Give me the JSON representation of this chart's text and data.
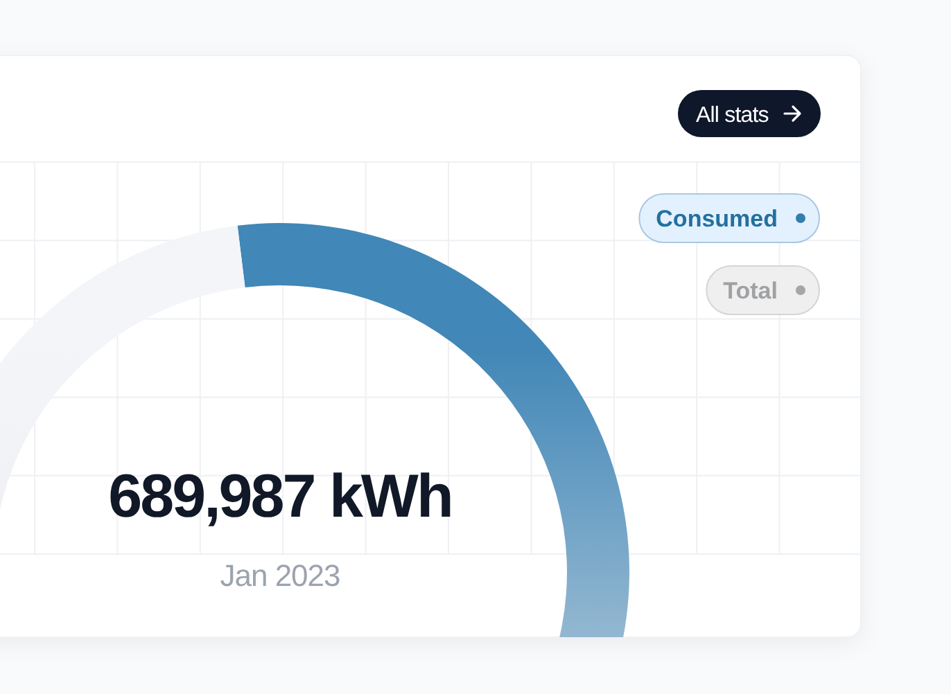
{
  "chart_data": {
    "type": "donut",
    "categories": [
      "Consumed",
      "Total"
    ],
    "values": [
      60,
      40
    ],
    "colors": [
      "#4187b7",
      "#f3f5f8"
    ],
    "legend": "top right",
    "grid": true,
    "annotations": [
      "689,987 kWh",
      "Jan 2023",
      "All stats"
    ]
  }
}
